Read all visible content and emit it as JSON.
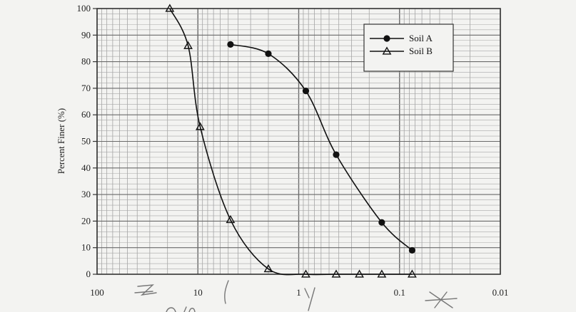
{
  "chart_data": {
    "type": "line",
    "title": "",
    "xlabel": "",
    "ylabel": "Percent Finer (%)",
    "x_scale": "log",
    "x_reversed": true,
    "xlim": [
      100,
      0.01
    ],
    "ylim": [
      0,
      100
    ],
    "x_ticks": [
      "100",
      "10",
      "1",
      "0.1",
      "0.01"
    ],
    "y_ticks": [
      "0",
      "10",
      "20",
      "30",
      "40",
      "50",
      "60",
      "70",
      "80",
      "90",
      "100"
    ],
    "grid": true,
    "legend_position": "top-right",
    "series": [
      {
        "name": "Soil A",
        "marker": "circle",
        "color": "#111111",
        "x": [
          4.75,
          2.0,
          0.85,
          0.425,
          0.15,
          0.075
        ],
        "y": [
          86.5,
          83,
          69,
          45,
          19.5,
          9
        ]
      },
      {
        "name": "Soil B",
        "marker": "triangle",
        "color": "#111111",
        "x": [
          19,
          12.5,
          9.5,
          4.75,
          2.0,
          0.85,
          0.425,
          0.25,
          0.15,
          0.075
        ],
        "y": [
          100,
          86,
          55.5,
          20.5,
          2,
          0,
          0,
          0,
          0,
          0
        ]
      }
    ]
  }
}
